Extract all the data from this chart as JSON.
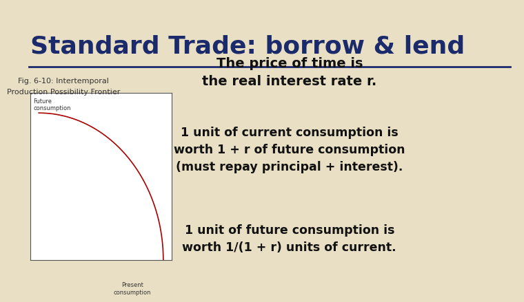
{
  "title": "Standard Trade: borrow & lend",
  "title_color": "#1b2a6b",
  "bg_color": "#e8dfc4",
  "fig_label_line1": "Fig. 6-10: Intertemporal",
  "fig_label_line2": "Production Possibility Frontier",
  "fig_label_color": "#333333",
  "chart_bg": "#ffffff",
  "curve_color": "#aa0000",
  "axis_label_future": "Future\nconsumption",
  "axis_label_present": "Present\nconsumption",
  "text1": "The price of time is\nthe real interest rate r.",
  "text2": "1 unit of current consumption is\nworth 1 + r of future consumption\n(must repay principal + interest).",
  "text3": "1 unit of future consumption is\nworth 1/(1 + r) units of current.",
  "text_color": "#111111",
  "underline_color": "#1b2a6b"
}
